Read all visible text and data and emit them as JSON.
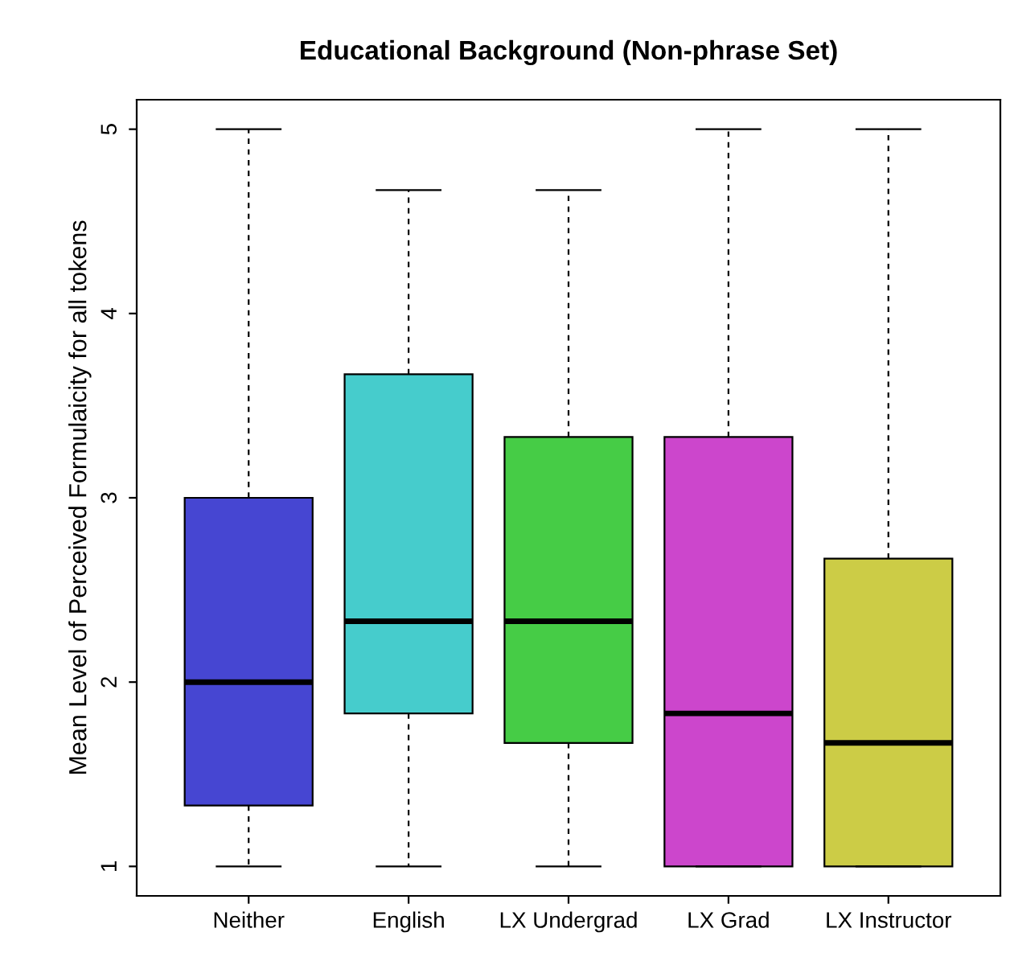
{
  "chart_data": {
    "type": "box",
    "title": "Educational Background (Non-phrase Set)",
    "ylabel": "Mean Level of Perceived Formulaicity for all tokens",
    "categories": [
      "Neither",
      "English",
      "LX Undergrad",
      "LX Grad",
      "LX Instructor"
    ],
    "colors": [
      "#4646d2",
      "#46cccc",
      "#46cc46",
      "#cc46cc",
      "#cccc46"
    ],
    "boxes": [
      {
        "low": 1,
        "q1": 1.33,
        "median": 2,
        "q3": 3,
        "high": 5
      },
      {
        "low": 1,
        "q1": 1.83,
        "median": 2.33,
        "q3": 3.67,
        "high": 4.67
      },
      {
        "low": 1,
        "q1": 1.67,
        "median": 2.33,
        "q3": 3.33,
        "high": 4.67
      },
      {
        "low": 1,
        "q1": 1,
        "median": 1.83,
        "q3": 3.33,
        "high": 5
      },
      {
        "low": 1,
        "q1": 1,
        "median": 1.67,
        "q3": 2.67,
        "high": 5
      }
    ],
    "ylim": [
      0.84,
      5.16
    ],
    "yticks": [
      1,
      2,
      3,
      4,
      5
    ],
    "grid": false,
    "legend": false
  }
}
